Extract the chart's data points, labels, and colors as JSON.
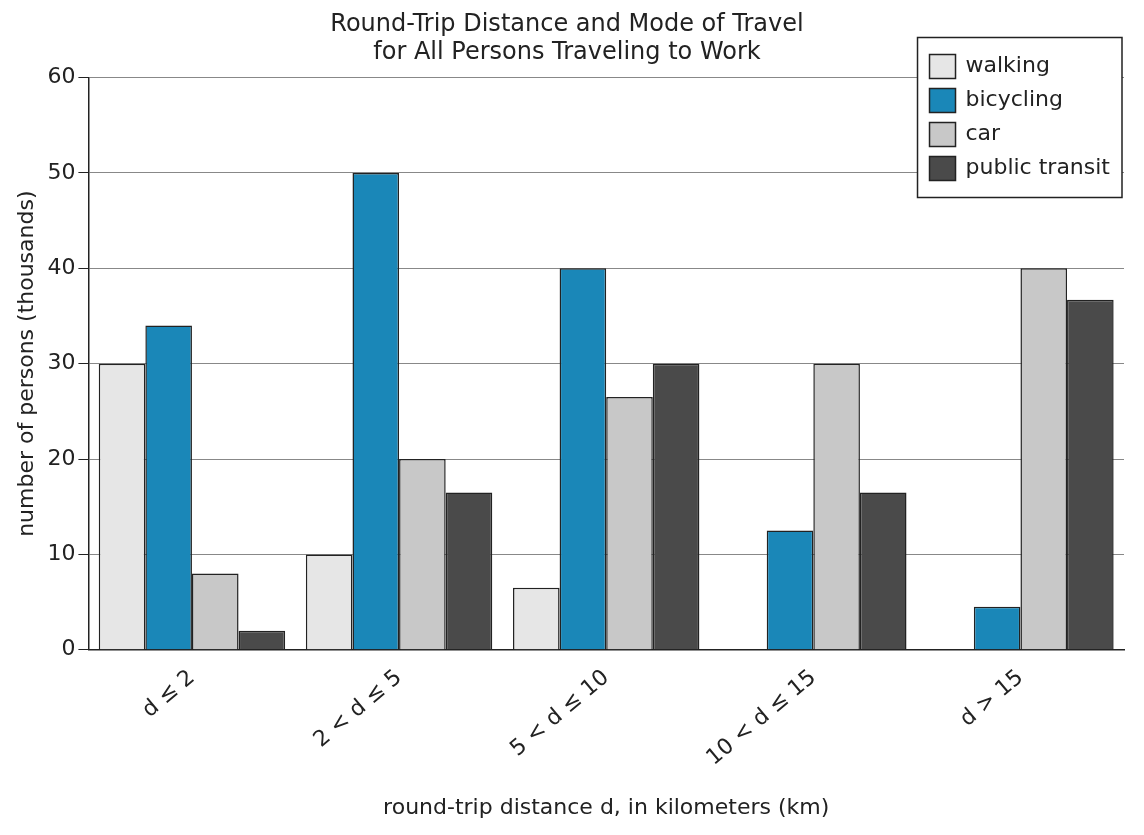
{
  "chart_data": {
    "type": "bar",
    "title": "Round-Trip Distance and Mode of Travel\nfor All Persons Traveling to Work",
    "xlabel": "round-trip distance d, in kilometers (km)",
    "ylabel": "number of persons (thousands)",
    "categories": [
      "d ≤ 2",
      "2 < d ≤ 5",
      "5 < d ≤ 10",
      "10 < d ≤ 15",
      "d > 15"
    ],
    "series": [
      {
        "name": "walking",
        "color": "#e6e6e6",
        "values": [
          30,
          10,
          6.5,
          0,
          0
        ]
      },
      {
        "name": "bicycling",
        "color": "#1a87b8",
        "values": [
          34,
          50,
          40,
          12.5,
          4.5
        ]
      },
      {
        "name": "car",
        "color": "#c8c8c8",
        "values": [
          8,
          20,
          26.5,
          30,
          40
        ]
      },
      {
        "name": "public transit",
        "color": "#4a4a4a",
        "values": [
          2,
          16.5,
          30,
          16.5,
          36.7
        ]
      }
    ],
    "ylim": [
      0,
      60
    ],
    "yticks": [
      0,
      10,
      20,
      30,
      40,
      50,
      60
    ],
    "grid": "y",
    "legend": "top right"
  }
}
